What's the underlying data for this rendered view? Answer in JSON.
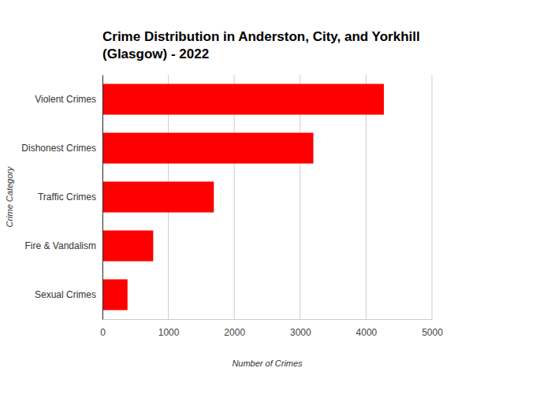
{
  "chart_data": {
    "type": "bar",
    "title": "Crime Distribution in Anderston, City, and Yorkhill (Glasgow) - 2022",
    "x_label": "Number of Crimes",
    "y_label": "Crime Category",
    "categories": [
      "Violent Crimes",
      "Dishonest Crimes",
      "Traffic Crimes",
      "Fire & Vandalism",
      "Sexual Crimes"
    ],
    "values": [
      4270,
      3200,
      1690,
      770,
      380
    ],
    "color": "#ff0000",
    "orientation": "horizontal",
    "xlim": [
      0,
      5000
    ],
    "xticks": [
      0,
      1000,
      2000,
      3000,
      4000,
      5000
    ],
    "grid": true
  }
}
